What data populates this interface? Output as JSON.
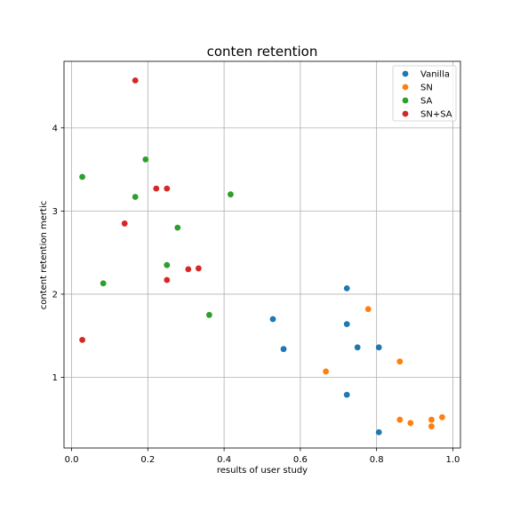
{
  "chart_data": {
    "type": "scatter",
    "title": "conten retention",
    "xlabel": "results of user study",
    "ylabel": "content retention mertic",
    "xlim": [
      -0.02,
      1.02
    ],
    "ylim": [
      0.15,
      4.8
    ],
    "xticks": [
      0.0,
      0.2,
      0.4,
      0.6,
      0.8,
      1.0
    ],
    "xtick_labels": [
      "0.0",
      "0.2",
      "0.4",
      "0.6",
      "0.8",
      "1.0"
    ],
    "yticks": [
      1,
      2,
      3,
      4
    ],
    "ytick_labels": [
      "1",
      "2",
      "3",
      "4"
    ],
    "grid": true,
    "legend_position": "top-right",
    "series": [
      {
        "name": "Vanilla",
        "color": "#1f77b4",
        "points": [
          [
            0.528,
            1.7
          ],
          [
            0.556,
            1.34
          ],
          [
            0.722,
            2.07
          ],
          [
            0.722,
            1.64
          ],
          [
            0.75,
            1.36
          ],
          [
            0.806,
            1.36
          ],
          [
            0.722,
            0.79
          ],
          [
            0.806,
            0.34
          ]
        ]
      },
      {
        "name": "SN",
        "color": "#ff7f0e",
        "points": [
          [
            0.778,
            1.82
          ],
          [
            0.667,
            1.07
          ],
          [
            0.861,
            1.19
          ],
          [
            0.861,
            0.49
          ],
          [
            0.889,
            0.45
          ],
          [
            0.944,
            0.49
          ],
          [
            0.944,
            0.41
          ],
          [
            0.972,
            0.52
          ]
        ]
      },
      {
        "name": "SA",
        "color": "#2ca02c",
        "points": [
          [
            0.028,
            3.41
          ],
          [
            0.194,
            3.62
          ],
          [
            0.167,
            3.17
          ],
          [
            0.417,
            3.2
          ],
          [
            0.278,
            2.8
          ],
          [
            0.25,
            2.35
          ],
          [
            0.083,
            2.13
          ],
          [
            0.361,
            1.75
          ]
        ]
      },
      {
        "name": "SN+SA",
        "color": "#d62728",
        "points": [
          [
            0.167,
            4.57
          ],
          [
            0.222,
            3.27
          ],
          [
            0.25,
            3.27
          ],
          [
            0.139,
            2.85
          ],
          [
            0.306,
            2.3
          ],
          [
            0.333,
            2.31
          ],
          [
            0.25,
            2.17
          ],
          [
            0.028,
            1.45
          ]
        ]
      }
    ]
  }
}
